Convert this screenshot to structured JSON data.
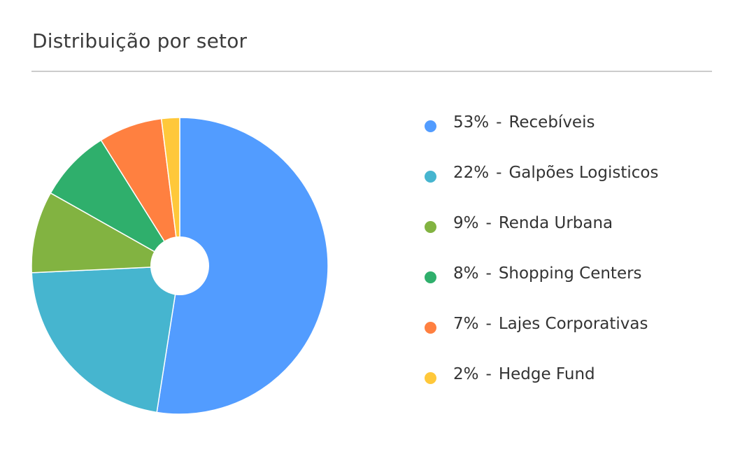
{
  "card": {
    "title": "Distribuição por setor"
  },
  "chart_data": {
    "type": "pie",
    "title": "Distribuição por setor",
    "donut_hole": true,
    "legend_position": "right",
    "categories": [
      "Recebíveis",
      "Galpões Logisticos",
      "Renda Urbana",
      "Shopping Centers",
      "Lajes Corporativas",
      "Hedge Fund"
    ],
    "values": [
      53,
      22,
      9,
      8,
      7,
      2
    ],
    "labels": [
      "53%",
      "22%",
      "9%",
      "8%",
      "7%",
      "2%"
    ],
    "colors": [
      "#529CFF",
      "#46B5CF",
      "#82B341",
      "#2FAF6C",
      "#FF8040",
      "#FFC83A"
    ]
  }
}
